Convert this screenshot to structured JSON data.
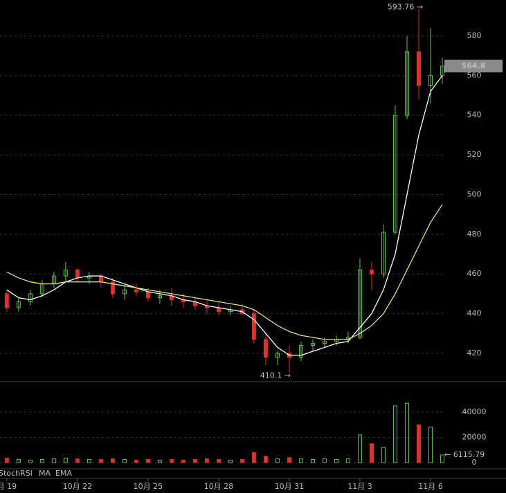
{
  "chart_data": {
    "type": "candlestick",
    "x": [
      0,
      0.5,
      1,
      1.5,
      2,
      2.5,
      3,
      3.5,
      4,
      4.5,
      5,
      5.5,
      6,
      6.5,
      7,
      7.5,
      8,
      8.5,
      9,
      9.5,
      10,
      10.5,
      11,
      11.5,
      12,
      12.5,
      13,
      13.5,
      14,
      14.5,
      15,
      15.5,
      16,
      16.5,
      17,
      17.5,
      18,
      18.5
    ],
    "open": [
      450,
      443,
      446,
      450,
      455,
      459,
      462,
      458,
      459,
      456,
      450,
      452,
      451,
      448,
      449,
      447,
      446,
      444,
      443,
      441,
      442,
      440,
      427,
      418,
      420,
      418,
      424,
      425,
      426,
      427,
      428,
      462,
      460,
      481,
      540,
      572,
      555,
      560
    ],
    "high": [
      452,
      448,
      452,
      457,
      461,
      466,
      463,
      461,
      460,
      458,
      455,
      455,
      453,
      452,
      453,
      450,
      448,
      447,
      446,
      444,
      445,
      442,
      430,
      421,
      424,
      426,
      427,
      428,
      429,
      431,
      468,
      466,
      485,
      545,
      580,
      593.76,
      584,
      569
    ],
    "low": [
      441,
      441,
      444,
      448,
      453,
      456,
      456,
      455,
      453,
      448,
      447,
      449,
      446,
      445,
      444,
      443,
      442,
      440,
      439,
      439,
      439,
      425,
      414,
      414,
      410.1,
      416,
      421,
      423,
      424,
      425,
      427,
      452,
      458,
      480,
      538,
      548,
      546,
      556
    ],
    "close": [
      443,
      446,
      450,
      455,
      459,
      462,
      458,
      459,
      456,
      450,
      452,
      451,
      448,
      449,
      447,
      446,
      444,
      443,
      441,
      442,
      440,
      427,
      418,
      420,
      418,
      424,
      425,
      426,
      427,
      428,
      462,
      460,
      481,
      540,
      572,
      555,
      560,
      564.8
    ],
    "up_color": "#5ec447",
    "down_color": "#e0302b",
    "ma": {
      "name": "MA",
      "color": "#ffffff",
      "values": [
        452,
        448,
        447,
        449,
        452,
        456,
        458,
        459,
        459,
        457,
        455,
        453,
        451,
        450,
        449,
        447,
        446,
        444,
        443,
        442,
        441,
        437,
        430,
        423,
        419,
        419,
        421,
        423,
        425,
        426,
        433,
        440,
        452,
        470,
        500,
        530,
        552,
        560
      ]
    },
    "ema": {
      "name": "EMA",
      "color": "#e8e070",
      "values": [
        461,
        458,
        456,
        455,
        455,
        456,
        456,
        456,
        456,
        455,
        454,
        453,
        452,
        451,
        450,
        449,
        448,
        447,
        446,
        445,
        444,
        442,
        438,
        434,
        431,
        429,
        428,
        427,
        427,
        427,
        430,
        434,
        440,
        450,
        462,
        474,
        486,
        495
      ]
    },
    "indicator_label": "StochRSI",
    "high_label": "593.76 →",
    "low_label": "410.1 →",
    "xlim": [
      -0.29,
      18.53
    ],
    "xticks": [
      {
        "value": 0,
        "label": "月 19"
      },
      {
        "value": 3,
        "label": "10月 22"
      },
      {
        "value": 6,
        "label": "10月 25"
      },
      {
        "value": 9,
        "label": "10月 28"
      },
      {
        "value": 12,
        "label": "10月 31"
      },
      {
        "value": 15,
        "label": "11月 3"
      },
      {
        "value": 18,
        "label": "11月 6"
      }
    ],
    "ylim": [
      405.7,
      598.1
    ],
    "yticks": [
      420,
      440,
      460,
      480,
      500,
      520,
      540,
      560,
      580
    ],
    "grid": true,
    "volume": {
      "values": [
        3500,
        2500,
        2000,
        2500,
        3000,
        3500,
        3000,
        2500,
        2500,
        3000,
        2500,
        2000,
        2500,
        2000,
        2500,
        2000,
        2500,
        3000,
        2500,
        2000,
        2500,
        8000,
        5000,
        3000,
        4000,
        3000,
        2500,
        3000,
        2500,
        3000,
        22000,
        15000,
        12000,
        45000,
        47000,
        30000,
        28000,
        6115.79
      ],
      "ylim": [
        -4900,
        64100
      ],
      "yticks": [
        0,
        20000,
        40000
      ],
      "last_label": "← 6115.79"
    }
  }
}
